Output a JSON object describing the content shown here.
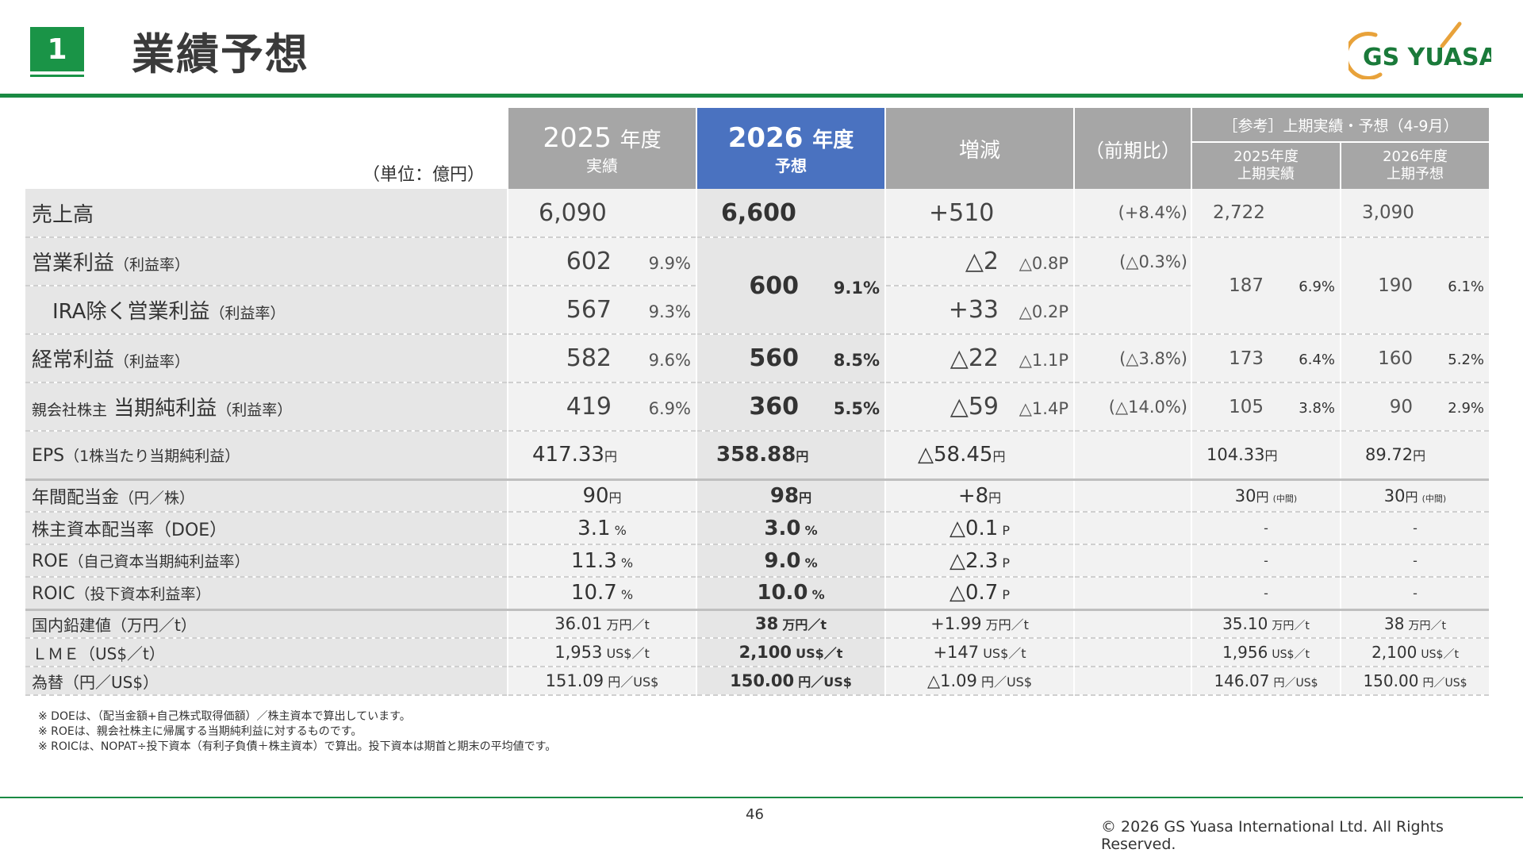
{
  "header": {
    "section_number": "1",
    "title": "業績予想",
    "logo_text": "GS YUASA"
  },
  "table": {
    "unit_label": "（単位：億円）",
    "columns": {
      "fy2025": {
        "year": "2025",
        "suffix": "年度",
        "sub": "実績"
      },
      "fy2026": {
        "year": "2026",
        "suffix": "年度",
        "sub": "予想"
      },
      "change": "増減",
      "yoy": "（前期比）",
      "ref_header": "［参考］上期実績・予想（4-9月）",
      "h1_2025": {
        "line1": "2025年度",
        "line2": "上期実績"
      },
      "h1_2026": {
        "line1": "2026年度",
        "line2": "上期予想"
      }
    },
    "rows": {
      "sales": {
        "label": "売上高",
        "fy2025": "6,090",
        "fy2026": "6,600",
        "change": "+510",
        "yoy": "(+8.4%)",
        "h1_2025": "2,722",
        "h1_2026": "3,090"
      },
      "op": {
        "label": "営業利益",
        "label_note": "（利益率）",
        "fy2025": "602",
        "fy2025_margin": "9.9%",
        "change": "△2",
        "change_pt": "△0.8P",
        "yoy": "(△0.3%)"
      },
      "op_shared": {
        "fy2026": "600",
        "fy2026_margin": "9.1%",
        "h1_2025": "187",
        "h1_2025_margin": "6.9%",
        "h1_2026": "190",
        "h1_2026_margin": "6.1%"
      },
      "op_ira": {
        "label": "IRA除く営業利益",
        "label_note": "（利益率）",
        "fy2025": "567",
        "fy2025_margin": "9.3%",
        "change": "+33",
        "change_pt": "△0.2P"
      },
      "ordinary": {
        "label": "経常利益",
        "label_note": "（利益率）",
        "fy2025": "582",
        "fy2025_margin": "9.6%",
        "fy2026": "560",
        "fy2026_margin": "8.5%",
        "change": "△22",
        "change_pt": "△1.1P",
        "yoy": "(△3.8%)",
        "h1_2025": "173",
        "h1_2025_margin": "6.4%",
        "h1_2026": "160",
        "h1_2026_margin": "5.2%"
      },
      "net": {
        "label_pre": "親会社株主",
        "label": "当期純利益",
        "label_note": "（利益率）",
        "fy2025": "419",
        "fy2025_margin": "6.9%",
        "fy2026": "360",
        "fy2026_margin": "5.5%",
        "change": "△59",
        "change_pt": "△1.4P",
        "yoy": "(△14.0%)",
        "h1_2025": "105",
        "h1_2025_margin": "3.8%",
        "h1_2026": "90",
        "h1_2026_margin": "2.9%"
      },
      "eps": {
        "label": "EPS",
        "label_note": "（1株当たり当期純利益）",
        "fy2025": "417.33",
        "fy2026": "358.88",
        "change": "△58.45",
        "h1_2025": "104.33",
        "h1_2026": "89.72",
        "unit": "円"
      },
      "dividend": {
        "label": "年間配当金",
        "label_note": "（円／株）",
        "fy2025": "90",
        "fy2026": "98",
        "change": "+8",
        "h1_2025": "30",
        "h1_2026": "30",
        "unit": "円",
        "interim": "(中間)"
      },
      "doe": {
        "label": "株主資本配当率（DOE）",
        "fy2025": "3.1",
        "fy2026": "3.0",
        "change": "△0.1",
        "unit": "%",
        "unit_p": "P",
        "h1_2025": "-",
        "h1_2026": "-"
      },
      "roe": {
        "label": "ROE",
        "label_note": "（自己資本当期純利益率）",
        "fy2025": "11.3",
        "fy2026": "9.0",
        "change": "△2.3",
        "unit": "%",
        "unit_p": "P",
        "h1_2025": "-",
        "h1_2026": "-"
      },
      "roic": {
        "label": "ROIC",
        "label_note": "（投下資本利益率）",
        "fy2025": "10.7",
        "fy2026": "10.0",
        "change": "△0.7",
        "unit": "%",
        "unit_p": "P",
        "h1_2025": "-",
        "h1_2026": "-"
      },
      "lead": {
        "label": "国内鉛建値（万円／t）",
        "fy2025": "36.01",
        "fy2026": "38",
        "change": "+1.99",
        "h1_2025": "35.10",
        "h1_2026": "38",
        "unit": "万円／t"
      },
      "lme": {
        "label": "ＬＭＥ（US$／t）",
        "fy2025": "1,953",
        "fy2026": "2,100",
        "change": "+147",
        "h1_2025": "1,956",
        "h1_2026": "2,100",
        "unit": "US$／t"
      },
      "fx": {
        "label": "為替（円／US$）",
        "fy2025": "151.09",
        "fy2026": "150.00",
        "change": "△1.09",
        "h1_2025": "146.07",
        "h1_2026": "150.00",
        "unit": "円／US$"
      }
    }
  },
  "footnotes": [
    "※ DOEは、（配当金額+自己株式取得価額）／株主資本で算出しています。",
    "※ ROEは、親会社株主に帰属する当期純利益に対するものです。",
    "※ ROICは、NOPAT÷投下資本（有利子負債＋株主資本）で算出。投下資本は期首と期末の平均値です。"
  ],
  "footer": {
    "page_number": "46",
    "copyright": "© 2026 GS Yuasa International Ltd. All Rights Reserved."
  },
  "colors": {
    "brand_green": "#1a9447",
    "header_gray": "#a6a6a6",
    "highlight_blue": "#4a72c0",
    "logo_orange": "#e8a23a"
  }
}
